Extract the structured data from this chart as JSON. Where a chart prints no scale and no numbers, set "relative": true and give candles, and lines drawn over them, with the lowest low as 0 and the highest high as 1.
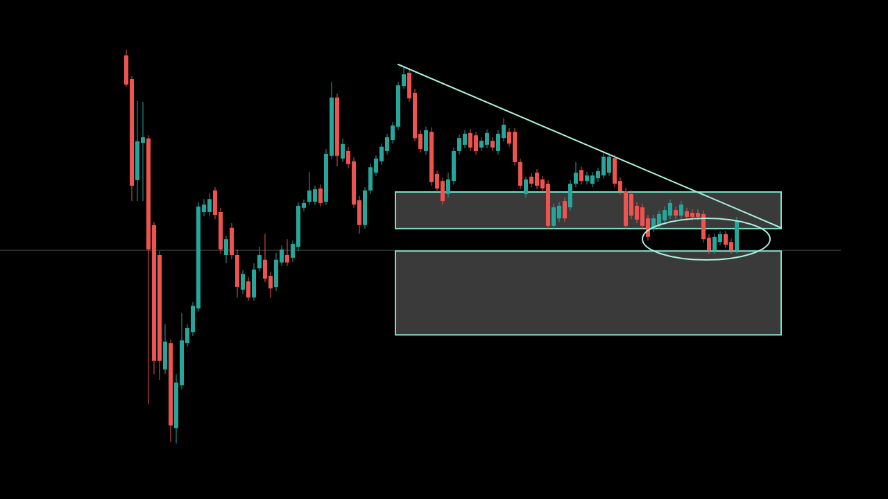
{
  "chart_data": {
    "type": "candlestick",
    "relative": true,
    "categories": [
      null,
      null,
      null,
      null,
      null,
      null,
      null,
      null,
      null,
      null,
      null,
      null,
      null,
      null,
      null,
      null,
      null,
      null,
      null,
      null,
      null,
      null,
      null,
      null,
      null,
      null,
      null,
      null,
      null,
      null,
      null,
      null,
      null,
      null,
      null,
      null,
      null,
      null,
      null,
      null,
      null,
      null,
      null,
      null,
      null,
      null,
      null,
      null,
      null,
      null,
      null,
      null,
      null,
      null,
      null,
      null,
      null,
      null,
      null,
      null,
      null,
      null,
      null,
      null,
      null,
      null,
      null,
      null,
      null,
      null,
      null,
      null,
      null,
      null,
      null,
      null,
      null,
      null,
      null,
      null,
      null,
      null,
      null,
      null,
      null,
      null,
      null,
      null,
      null,
      null,
      null,
      null,
      null,
      null,
      null,
      null,
      null,
      null,
      null,
      null,
      null,
      null,
      null,
      null,
      null,
      null,
      null,
      null,
      null,
      null,
      null,
      null,
      null,
      null,
      null,
      null,
      null,
      null,
      null
    ],
    "ohlc": [
      [
        0.986,
        1.0,
        0.907,
        0.912
      ],
      [
        0.926,
        0.933,
        0.616,
        0.655
      ],
      [
        0.669,
        0.871,
        0.616,
        0.768
      ],
      [
        0.764,
        0.868,
        0.616,
        0.778
      ],
      [
        0.775,
        0.783,
        0.1,
        0.493
      ],
      [
        0.555,
        0.563,
        0.176,
        0.21
      ],
      [
        0.479,
        0.489,
        0.162,
        0.21
      ],
      [
        0.188,
        0.303,
        0.176,
        0.259
      ],
      [
        0.255,
        0.264,
        0.004,
        0.046
      ],
      [
        0.039,
        0.176,
        0.0,
        0.155
      ],
      [
        0.148,
        0.331,
        0.137,
        0.262
      ],
      [
        0.255,
        0.303,
        0.246,
        0.294
      ],
      [
        0.283,
        0.359,
        0.273,
        0.35
      ],
      [
        0.343,
        0.613,
        0.335,
        0.602
      ],
      [
        0.588,
        0.621,
        0.577,
        0.607
      ],
      [
        0.588,
        0.636,
        0.577,
        0.621
      ],
      [
        0.643,
        0.651,
        0.57,
        0.581
      ],
      [
        0.588,
        0.599,
        0.482,
        0.493
      ],
      [
        0.479,
        0.528,
        0.458,
        0.519
      ],
      [
        0.548,
        0.56,
        0.468,
        0.479
      ],
      [
        0.479,
        0.493,
        0.371,
        0.398
      ],
      [
        0.391,
        0.44,
        0.38,
        0.431
      ],
      [
        0.412,
        0.423,
        0.363,
        0.371
      ],
      [
        0.371,
        0.458,
        0.363,
        0.442
      ],
      [
        0.445,
        0.5,
        0.437,
        0.479
      ],
      [
        0.467,
        0.533,
        0.41,
        0.419
      ],
      [
        0.426,
        0.437,
        0.37,
        0.394
      ],
      [
        0.398,
        0.484,
        0.387,
        0.467
      ],
      [
        0.46,
        0.504,
        0.451,
        0.493
      ],
      [
        0.479,
        0.519,
        0.451,
        0.46
      ],
      [
        0.472,
        0.516,
        0.461,
        0.507
      ],
      [
        0.5,
        0.613,
        0.489,
        0.604
      ],
      [
        0.599,
        0.62,
        0.59,
        0.611
      ],
      [
        0.614,
        0.69,
        0.606,
        0.643
      ],
      [
        0.614,
        0.655,
        0.606,
        0.646
      ],
      [
        0.648,
        0.658,
        0.602,
        0.611
      ],
      [
        0.614,
        0.748,
        0.606,
        0.736
      ],
      [
        0.731,
        0.919,
        0.722,
        0.879
      ],
      [
        0.879,
        0.889,
        0.704,
        0.731
      ],
      [
        0.724,
        0.775,
        0.715,
        0.761
      ],
      [
        0.743,
        0.754,
        0.699,
        0.71
      ],
      [
        0.717,
        0.727,
        0.599,
        0.607
      ],
      [
        0.618,
        0.629,
        0.533,
        0.555
      ],
      [
        0.555,
        0.651,
        0.546,
        0.643
      ],
      [
        0.643,
        0.711,
        0.634,
        0.702
      ],
      [
        0.688,
        0.732,
        0.68,
        0.724
      ],
      [
        0.717,
        0.762,
        0.708,
        0.754
      ],
      [
        0.743,
        0.787,
        0.734,
        0.778
      ],
      [
        0.771,
        0.817,
        0.762,
        0.808
      ],
      [
        0.805,
        0.919,
        0.796,
        0.91
      ],
      [
        0.908,
        0.956,
        0.901,
        0.938
      ],
      [
        0.942,
        0.954,
        0.868,
        0.877
      ],
      [
        0.891,
        0.901,
        0.768,
        0.776
      ],
      [
        0.787,
        0.796,
        0.739,
        0.748
      ],
      [
        0.743,
        0.805,
        0.734,
        0.796
      ],
      [
        0.792,
        0.803,
        0.655,
        0.664
      ],
      [
        0.685,
        0.694,
        0.639,
        0.648
      ],
      [
        0.667,
        0.676,
        0.607,
        0.616
      ],
      [
        0.634,
        0.688,
        0.625,
        0.671
      ],
      [
        0.667,
        0.752,
        0.658,
        0.743
      ],
      [
        0.743,
        0.785,
        0.734,
        0.776
      ],
      [
        0.759,
        0.796,
        0.75,
        0.787
      ],
      [
        0.789,
        0.799,
        0.743,
        0.752
      ],
      [
        0.783,
        0.792,
        0.734,
        0.743
      ],
      [
        0.752,
        0.778,
        0.743,
        0.769
      ],
      [
        0.759,
        0.798,
        0.75,
        0.789
      ],
      [
        0.769,
        0.778,
        0.743,
        0.752
      ],
      [
        0.743,
        0.796,
        0.734,
        0.787
      ],
      [
        0.776,
        0.827,
        0.768,
        0.81
      ],
      [
        0.792,
        0.801,
        0.754,
        0.762
      ],
      [
        0.792,
        0.801,
        0.706,
        0.715
      ],
      [
        0.715,
        0.724,
        0.646,
        0.655
      ],
      [
        0.634,
        0.678,
        0.625,
        0.671
      ],
      [
        0.678,
        0.687,
        0.651,
        0.66
      ],
      [
        0.688,
        0.697,
        0.646,
        0.655
      ],
      [
        0.671,
        0.68,
        0.639,
        0.648
      ],
      [
        0.66,
        0.669,
        0.544,
        0.553
      ],
      [
        0.553,
        0.609,
        0.544,
        0.6
      ],
      [
        0.572,
        0.613,
        0.563,
        0.604
      ],
      [
        0.616,
        0.625,
        0.563,
        0.572
      ],
      [
        0.6,
        0.669,
        0.592,
        0.66
      ],
      [
        0.66,
        0.715,
        0.651,
        0.688
      ],
      [
        0.695,
        0.704,
        0.658,
        0.667
      ],
      [
        0.667,
        0.69,
        0.658,
        0.681
      ],
      [
        0.66,
        0.69,
        0.651,
        0.681
      ],
      [
        0.674,
        0.701,
        0.665,
        0.692
      ],
      [
        0.681,
        0.743,
        0.673,
        0.729
      ],
      [
        0.688,
        0.738,
        0.68,
        0.729
      ],
      [
        0.725,
        0.734,
        0.651,
        0.66
      ],
      [
        0.667,
        0.676,
        0.632,
        0.641
      ],
      [
        0.641,
        0.65,
        0.544,
        0.553
      ],
      [
        0.634,
        0.643,
        0.57,
        0.579
      ],
      [
        0.604,
        0.613,
        0.56,
        0.569
      ],
      [
        0.6,
        0.609,
        0.544,
        0.553
      ],
      [
        0.572,
        0.581,
        0.516,
        0.525
      ],
      [
        0.546,
        0.581,
        0.537,
        0.572
      ],
      [
        0.553,
        0.592,
        0.544,
        0.583
      ],
      [
        0.567,
        0.602,
        0.558,
        0.593
      ],
      [
        0.579,
        0.62,
        0.57,
        0.611
      ],
      [
        0.593,
        0.602,
        0.57,
        0.579
      ],
      [
        0.579,
        0.616,
        0.57,
        0.607
      ],
      [
        0.59,
        0.599,
        0.567,
        0.576
      ],
      [
        0.586,
        0.595,
        0.567,
        0.576
      ],
      [
        0.586,
        0.595,
        0.567,
        0.576
      ],
      [
        0.583,
        0.592,
        0.511,
        0.519
      ],
      [
        0.523,
        0.532,
        0.482,
        0.491
      ],
      [
        0.491,
        0.533,
        0.482,
        0.525
      ],
      [
        0.512,
        0.54,
        0.504,
        0.532
      ],
      [
        0.532,
        0.54,
        0.496,
        0.505
      ],
      [
        0.512,
        0.521,
        0.482,
        0.491
      ],
      [
        0.491,
        0.576,
        0.482,
        0.567
      ],
      null,
      null,
      null,
      null,
      null,
      null,
      null,
      null
    ],
    "colors": [
      "#ef5350",
      "#ef5350",
      "#26a69a",
      "#26a69a",
      "#ef5350",
      "#ef5350",
      "#ef5350",
      "#26a69a",
      "#ef5350",
      "#26a69a",
      "#26a69a",
      "#26a69a",
      "#26a69a",
      "#26a69a",
      "#26a69a",
      "#26a69a",
      "#ef5350",
      "#ef5350",
      "#26a69a",
      "#ef5350",
      "#ef5350",
      "#26a69a",
      "#ef5350",
      "#26a69a",
      "#26a69a",
      "#ef5350",
      "#ef5350",
      "#26a69a",
      "#26a69a",
      "#ef5350",
      "#26a69a",
      "#26a69a",
      "#26a69a",
      "#26a69a",
      "#26a69a",
      "#ef5350",
      "#26a69a",
      "#26a69a",
      "#ef5350",
      "#26a69a",
      "#ef5350",
      "#ef5350",
      "#ef5350",
      "#26a69a",
      "#26a69a",
      "#26a69a",
      "#26a69a",
      "#26a69a",
      "#26a69a",
      "#26a69a",
      "#26a69a",
      "#ef5350",
      "#ef5350",
      "#ef5350",
      "#26a69a",
      "#ef5350",
      "#ef5350",
      "#ef5350",
      "#26a69a",
      "#26a69a",
      "#26a69a",
      "#26a69a",
      "#ef5350",
      "#ef5350",
      "#26a69a",
      "#26a69a",
      "#ef5350",
      "#26a69a",
      "#26a69a",
      "#ef5350",
      "#ef5350",
      "#ef5350",
      "#26a69a",
      "#ef5350",
      "#ef5350",
      "#ef5350",
      "#ef5350",
      "#26a69a",
      "#26a69a",
      "#ef5350",
      "#26a69a",
      "#26a69a",
      "#ef5350",
      "#26a69a",
      "#26a69a",
      "#26a69a",
      "#26a69a",
      "#26a69a",
      "#ef5350",
      "#ef5350",
      "#ef5350",
      "#ef5350",
      "#ef5350",
      "#ef5350",
      "#ef5350",
      "#26a69a",
      "#26a69a",
      "#26a69a",
      "#26a69a",
      "#ef5350",
      "#26a69a",
      "#ef5350",
      "#ef5350",
      "#ef5350",
      "#ef5350",
      "#ef5350",
      "#26a69a",
      "#26a69a",
      "#ef5350",
      "#ef5350",
      "#26a69a",
      null,
      null,
      null,
      null,
      null,
      null,
      null,
      null
    ],
    "series": [
      {
        "type": "line",
        "color": "#a8f0dc",
        "values": [
          null,
          null,
          null,
          null,
          null,
          null,
          null,
          null,
          null,
          null,
          null,
          null,
          null,
          null,
          null,
          null,
          null,
          null,
          null,
          null,
          null,
          null,
          null,
          null,
          null,
          null,
          null,
          null,
          null,
          null,
          null,
          null,
          null,
          null,
          null,
          null,
          null,
          null,
          null,
          null,
          null,
          null,
          null,
          null,
          null,
          null,
          null,
          null,
          null,
          0.963,
          null,
          null,
          null,
          null,
          null,
          null,
          null,
          null,
          null,
          null,
          null,
          null,
          null,
          null,
          null,
          null,
          null,
          null,
          null,
          null,
          null,
          null,
          null,
          null,
          null,
          null,
          null,
          null,
          null,
          null,
          null,
          null,
          null,
          null,
          null,
          null,
          null,
          null,
          null,
          null,
          null,
          null,
          null,
          null,
          null,
          null,
          null,
          null,
          null,
          null,
          null,
          null,
          null,
          null,
          null,
          null,
          null,
          null,
          null,
          null,
          null,
          null,
          null,
          null,
          null,
          null,
          null,
          null,
          0.548
        ]
      }
    ],
    "ref_lines": [
      {
        "axis": "y",
        "value": 0.491,
        "color": "#4a4a4a"
      }
    ],
    "bands": [
      {
        "axis": "y",
        "from": 0.546,
        "to": 0.639,
        "color": "#3a3a3a"
      },
      {
        "axis": "y",
        "from": 0.276,
        "to": 0.489,
        "color": "#3a3a3a"
      }
    ]
  }
}
